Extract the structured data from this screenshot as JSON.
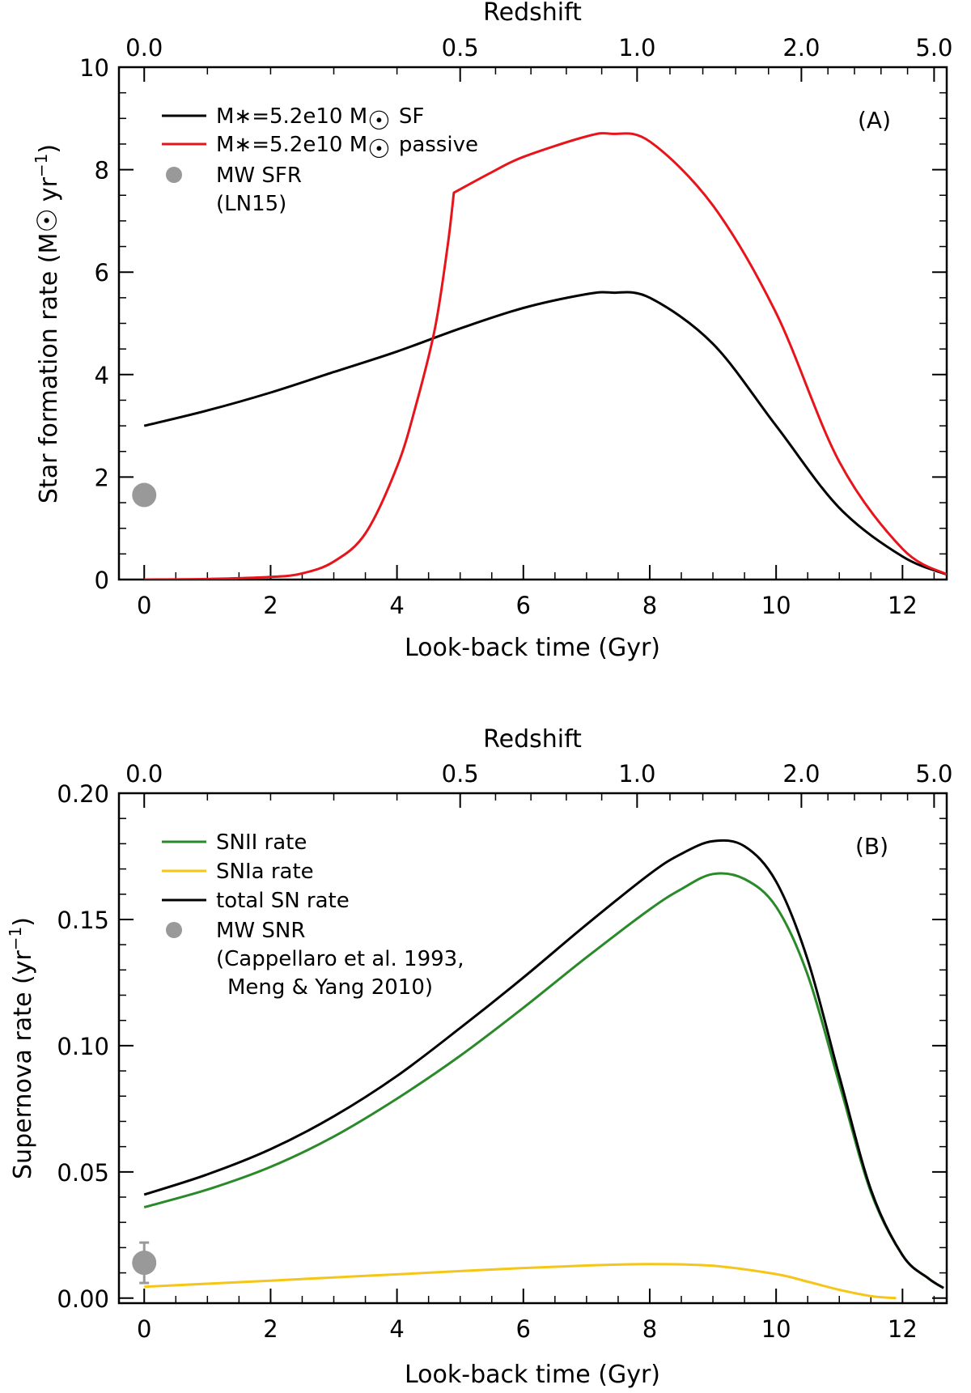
{
  "chart_data": [
    {
      "panel": "A",
      "type": "line",
      "panel_label": "(A)",
      "xlabel": "Look-back time (Gyr)",
      "ylabel_main": "Star formation rate (M",
      "ylabel_unit": "yr",
      "ylabel_exp": "−1",
      "top_axis_label": "Redshift",
      "xlim": [
        -0.4,
        12.7
      ],
      "ylim": [
        0,
        10
      ],
      "x_ticks": [
        "0",
        "2",
        "4",
        "6",
        "8",
        "10",
        "12"
      ],
      "y_ticks": [
        "0",
        "2",
        "4",
        "6",
        "8",
        "10"
      ],
      "redshift_ticks": [
        {
          "label": "0.0",
          "t": 0.0
        },
        {
          "label": "0.5",
          "t": 5.0
        },
        {
          "label": "1.0",
          "t": 7.8
        },
        {
          "label": "2.0",
          "t": 10.4
        },
        {
          "label": "5.0",
          "t": 12.5
        }
      ],
      "series": [
        {
          "name": "M*=5.2e10 M☉ SF",
          "legend_main": "M∗=5.2e10 M",
          "legend_tail": "SF",
          "color": "#000000",
          "x": [
            0,
            1,
            2,
            3,
            4,
            5,
            6,
            7,
            7.4,
            8,
            9,
            10,
            11,
            12,
            12.7
          ],
          "y": [
            3.0,
            3.3,
            3.65,
            4.05,
            4.45,
            4.9,
            5.3,
            5.57,
            5.6,
            5.5,
            4.6,
            3.0,
            1.4,
            0.45,
            0.1
          ]
        },
        {
          "name": "M*=5.2e10 M☉ passive",
          "legend_main": "M∗=5.2e10 M",
          "legend_tail": "passive",
          "color": "#e8141b",
          "x": [
            0,
            1,
            2,
            2.5,
            3,
            3.5,
            4,
            4.3,
            4.6,
            4.8,
            4.9,
            5.5,
            6,
            7,
            7.4,
            8,
            9,
            10,
            11,
            12,
            12.7
          ],
          "y": [
            0,
            0.01,
            0.05,
            0.12,
            0.35,
            0.9,
            2.2,
            3.4,
            4.9,
            6.5,
            7.55,
            7.95,
            8.25,
            8.65,
            8.7,
            8.55,
            7.3,
            5.2,
            2.3,
            0.6,
            0.1
          ]
        }
      ],
      "points": [
        {
          "name": "MW SFR",
          "legend_line1": "MW SFR",
          "legend_line2": "(LN15)",
          "x": 0,
          "y": 1.65,
          "color": "#999999"
        }
      ]
    },
    {
      "panel": "B",
      "type": "line",
      "panel_label": "(B)",
      "xlabel": "Look-back time (Gyr)",
      "ylabel_main": "Supernova rate (yr",
      "ylabel_exp": "−1",
      "top_axis_label": "Redshift",
      "xlim": [
        -0.4,
        12.7
      ],
      "ylim": [
        -0.002,
        0.2
      ],
      "x_ticks": [
        "0",
        "2",
        "4",
        "6",
        "8",
        "10",
        "12"
      ],
      "y_ticks": [
        "0.00",
        "0.05",
        "0.10",
        "0.15",
        "0.20"
      ],
      "redshift_ticks": [
        {
          "label": "0.0",
          "t": 0.0
        },
        {
          "label": "0.5",
          "t": 5.0
        },
        {
          "label": "1.0",
          "t": 7.8
        },
        {
          "label": "2.0",
          "t": 10.4
        },
        {
          "label": "5.0",
          "t": 12.5
        }
      ],
      "series": [
        {
          "name": "SNII rate",
          "color": "#2a8a2a",
          "x": [
            0,
            1,
            2,
            3,
            4,
            5,
            6,
            7,
            8,
            8.5,
            9,
            9.5,
            10,
            10.5,
            11,
            11.5,
            12,
            12.4,
            12.65
          ],
          "y": [
            0.036,
            0.043,
            0.052,
            0.064,
            0.079,
            0.096,
            0.115,
            0.135,
            0.154,
            0.162,
            0.168,
            0.166,
            0.155,
            0.128,
            0.085,
            0.042,
            0.017,
            0.008,
            0.004
          ]
        },
        {
          "name": "SNIa rate",
          "color": "#f5c518",
          "x": [
            0,
            1,
            2,
            3,
            4,
            5,
            6,
            7,
            8,
            9,
            10,
            10.5,
            11,
            11.5,
            11.9
          ],
          "y": [
            0.0045,
            0.0057,
            0.0069,
            0.0082,
            0.0094,
            0.0107,
            0.0119,
            0.0129,
            0.0135,
            0.0128,
            0.0095,
            0.0065,
            0.0033,
            0.0008,
            0.0
          ]
        },
        {
          "name": "total SN rate",
          "color": "#000000",
          "x": [
            0,
            1,
            2,
            3,
            4,
            5,
            6,
            7,
            8,
            8.5,
            9,
            9.5,
            10,
            10.5,
            11,
            11.5,
            12,
            12.4,
            12.65
          ],
          "y": [
            0.041,
            0.049,
            0.059,
            0.072,
            0.088,
            0.107,
            0.127,
            0.148,
            0.168,
            0.176,
            0.181,
            0.179,
            0.165,
            0.134,
            0.088,
            0.043,
            0.017,
            0.008,
            0.004
          ]
        }
      ],
      "points": [
        {
          "name": "MW SNR",
          "legend_line1": "MW SNR",
          "legend_line2": "(Cappellaro et al. 1993,",
          "legend_line3": "Meng & Yang 2010)",
          "x": 0,
          "y": 0.014,
          "err_low": 0.006,
          "err_high": 0.022,
          "color": "#999999"
        }
      ]
    }
  ]
}
